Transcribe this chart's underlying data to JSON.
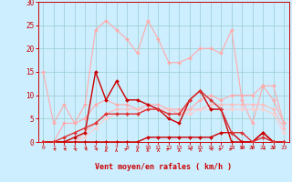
{
  "x": [
    0,
    1,
    2,
    3,
    4,
    5,
    6,
    7,
    8,
    9,
    10,
    11,
    12,
    13,
    14,
    15,
    16,
    17,
    18,
    19,
    20,
    21,
    22,
    23
  ],
  "series": [
    {
      "name": "rafales_top",
      "color": "#ffaaaa",
      "linewidth": 0.8,
      "marker": "D",
      "markersize": 2,
      "y": [
        15,
        4,
        8,
        4,
        8,
        24,
        26,
        24,
        22,
        19,
        26,
        22,
        17,
        17,
        18,
        20,
        20,
        19,
        24,
        9,
        4,
        12,
        12,
        4
      ]
    },
    {
      "name": "vent_mid1",
      "color": "#ffaaaa",
      "linewidth": 0.8,
      "marker": "D",
      "markersize": 2,
      "y": [
        0,
        0,
        4,
        4,
        5,
        8,
        9,
        8,
        8,
        7,
        8,
        8,
        7,
        7,
        7,
        9,
        10,
        9,
        10,
        10,
        10,
        12,
        9,
        4
      ]
    },
    {
      "name": "vent_mid2",
      "color": "#ffbbbb",
      "linewidth": 0.8,
      "marker": "D",
      "markersize": 2,
      "y": [
        0,
        0,
        0,
        0,
        2,
        4,
        6,
        7,
        7,
        7,
        7,
        7,
        7,
        6,
        7,
        7,
        8,
        8,
        8,
        8,
        8,
        8,
        7,
        3
      ]
    },
    {
      "name": "vent_mid3",
      "color": "#ffcccc",
      "linewidth": 0.8,
      "marker": "D",
      "markersize": 2,
      "y": [
        0,
        0,
        0,
        0,
        1,
        3,
        5,
        6,
        6,
        6,
        7,
        7,
        6,
        6,
        6,
        7,
        7,
        7,
        7,
        7,
        7,
        7,
        6,
        2
      ]
    },
    {
      "name": "vent_dark_main",
      "color": "#cc0000",
      "linewidth": 1.0,
      "marker": "D",
      "markersize": 2,
      "y": [
        0,
        0,
        0,
        1,
        2,
        15,
        9,
        13,
        9,
        9,
        8,
        7,
        5,
        4,
        9,
        11,
        7,
        7,
        0,
        0,
        0,
        2,
        0,
        0
      ]
    },
    {
      "name": "vent_dark_low",
      "color": "#cc0000",
      "linewidth": 1.0,
      "marker": "D",
      "markersize": 2,
      "y": [
        0,
        0,
        0,
        0,
        0,
        0,
        0,
        0,
        0,
        0,
        1,
        1,
        1,
        1,
        1,
        1,
        1,
        2,
        2,
        0,
        0,
        2,
        0,
        0
      ]
    },
    {
      "name": "vent_dark3",
      "color": "#dd3333",
      "linewidth": 1.0,
      "marker": "D",
      "markersize": 2,
      "y": [
        0,
        0,
        1,
        2,
        3,
        4,
        6,
        6,
        6,
        6,
        7,
        7,
        6,
        6,
        9,
        11,
        9,
        7,
        2,
        2,
        0,
        1,
        0,
        0
      ]
    }
  ],
  "xlim": [
    -0.5,
    23.5
  ],
  "ylim": [
    0,
    30
  ],
  "yticks": [
    0,
    5,
    10,
    15,
    20,
    25,
    30
  ],
  "xticks": [
    0,
    1,
    2,
    3,
    4,
    5,
    6,
    7,
    8,
    9,
    10,
    11,
    12,
    13,
    14,
    15,
    16,
    17,
    18,
    19,
    20,
    21,
    22,
    23
  ],
  "xlabel": "Vent moyen/en rafales ( km/h )",
  "background_color": "#cceeff",
  "grid_color": "#99cccc",
  "axis_color": "#cc0000",
  "label_color": "#cc0000",
  "tick_color": "#cc0000"
}
